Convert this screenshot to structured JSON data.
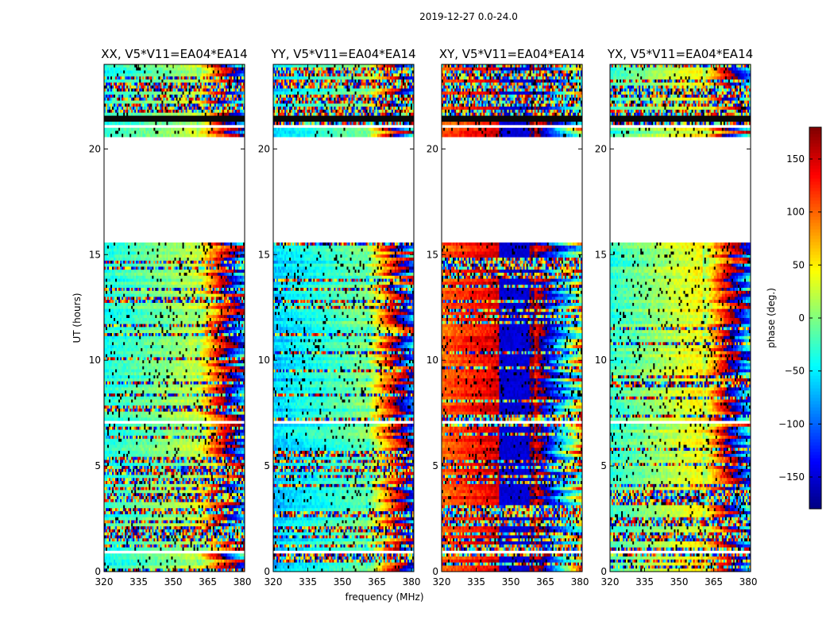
{
  "figure": {
    "suptitle": "2019-12-27 0.0-24.0"
  },
  "chart_data": {
    "type": "heatmap",
    "title": "2019-12-27 0.0-24.0",
    "xlabel": "frequency (MHz)",
    "ylabel": "UT (hours)",
    "xlim": [
      320,
      381
    ],
    "ylim": [
      0,
      24
    ],
    "x_ticks": [
      320,
      335,
      350,
      365,
      380
    ],
    "y_ticks": [
      0,
      5,
      10,
      15,
      20
    ],
    "panels": [
      {
        "title": "XX, V5*V11=EA04*EA14",
        "polarization": "XX",
        "phase_offset_deg": 0
      },
      {
        "title": "YY, V5*V11=EA04*EA14",
        "polarization": "YY",
        "phase_offset_deg": -25
      },
      {
        "title": "XY, V5*V11=EA04*EA14",
        "polarization": "XY",
        "phase_offset_deg": 140
      },
      {
        "title": "YX, V5*V11=EA04*EA14",
        "polarization": "YX",
        "phase_offset_deg": 10
      }
    ],
    "empty_ut_ranges": [
      [
        0.9,
        0.95
      ],
      [
        1.6,
        1.63
      ],
      [
        6.8,
        6.86
      ],
      [
        7.05,
        7.2
      ],
      [
        7.28,
        7.35
      ],
      [
        15.6,
        20.5
      ],
      [
        21.0,
        21.08
      ],
      [
        21.85,
        21.9
      ]
    ],
    "dark_ut_ranges": [
      [
        21.3,
        21.55
      ]
    ],
    "colorbar": {
      "label": "phase (deg.)",
      "min": -180,
      "max": 180,
      "ticks": [
        -150,
        -100,
        -50,
        0,
        50,
        100,
        150
      ],
      "tick_labels": [
        "−150",
        "−100",
        "−50",
        "0",
        "50",
        "100",
        "150"
      ]
    }
  }
}
